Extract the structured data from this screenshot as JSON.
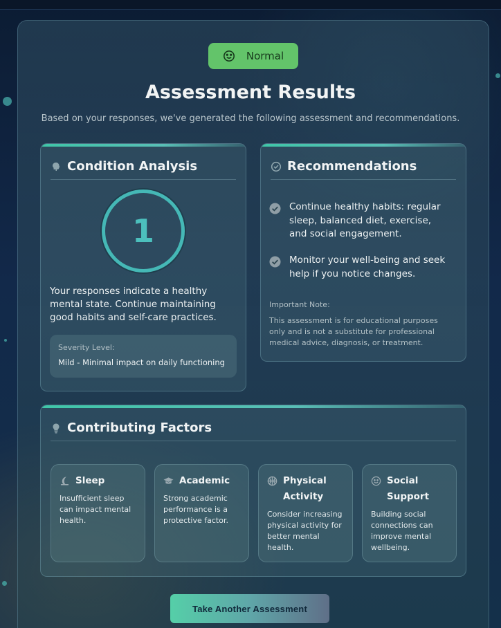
{
  "status_badge": {
    "label": "Normal",
    "icon": "smiley-icon",
    "color": "#63c46a"
  },
  "header": {
    "title": "Assessment Results",
    "subtitle": "Based on your responses, we've generated the following assessment and recommendations."
  },
  "condition": {
    "title": "Condition Analysis",
    "icon": "brain-icon",
    "score": "1",
    "description": "Your responses indicate a healthy mental state. Continue maintaining good habits and self-care practices.",
    "severity_label": "Severity Level:",
    "severity_value": "Mild - Minimal impact on daily functioning"
  },
  "recommendations": {
    "title": "Recommendations",
    "icon": "clipboard-icon",
    "items": [
      "Continue healthy habits: regular sleep, balanced diet, exercise, and social engagement.",
      "Monitor your well-being and seek help if you notice changes."
    ],
    "note_label": "Important Note:",
    "note_text": "This assessment is for educational purposes only and is not a substitute for professional medical advice, diagnosis, or treatment."
  },
  "factors": {
    "title": "Contributing Factors",
    "icon": "lightbulb-icon",
    "items": [
      {
        "title": "Sleep",
        "icon": "moon-icon",
        "text": "Insufficient sleep can impact mental health."
      },
      {
        "title": "Academic",
        "icon": "graduation-cap-icon",
        "text": "Strong academic performance is a protective factor."
      },
      {
        "title": "Physical Activity",
        "icon": "basketball-icon",
        "text": "Consider increasing physical activity for better mental health."
      },
      {
        "title": "Social Support",
        "icon": "smiley-icon",
        "text": "Building social connections can improve mental wellbeing."
      }
    ]
  },
  "actions": {
    "retake_label": "Take Another Assessment"
  },
  "colors": {
    "accent": "#45b8b6",
    "success": "#63c46a",
    "background": "#12294a"
  }
}
